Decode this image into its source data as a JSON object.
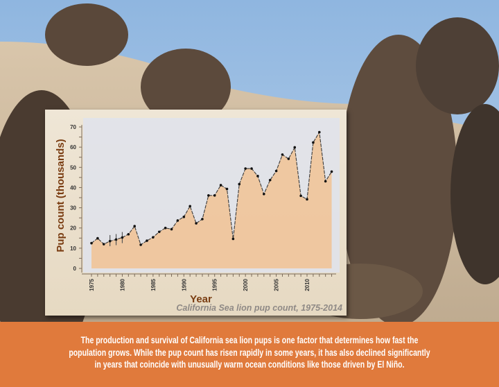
{
  "colors": {
    "banner": "#e07a3c",
    "area_fill": "#f2c08f",
    "axis_text": "#7a3d12",
    "caption": "#8f8a86"
  },
  "chart_data": {
    "type": "area",
    "caption": "California Sea lion pup count, 1975-2014",
    "xlabel": "Year",
    "ylabel": "Pup count (thousands)",
    "xlim": [
      1975,
      2014
    ],
    "ylim": [
      0,
      70
    ],
    "xticks": [
      "1975",
      "1980",
      "1985",
      "1990",
      "1995",
      "2000",
      "2005",
      "2010"
    ],
    "yticks": [
      "0",
      "10",
      "20",
      "30",
      "40",
      "50",
      "60",
      "70"
    ],
    "grid": false,
    "x": [
      1975,
      1976,
      1977,
      1978,
      1979,
      1980,
      1981,
      1982,
      1983,
      1984,
      1985,
      1986,
      1987,
      1988,
      1989,
      1990,
      1991,
      1992,
      1993,
      1994,
      1995,
      1996,
      1997,
      1998,
      1999,
      2000,
      2001,
      2002,
      2003,
      2004,
      2005,
      2006,
      2007,
      2008,
      2009,
      2010,
      2011,
      2012,
      2013,
      2014
    ],
    "values": [
      12.5,
      14.9,
      12.0,
      13.5,
      14.3,
      15.3,
      16.9,
      20.9,
      11.7,
      13.7,
      15.4,
      18.1,
      20.0,
      19.4,
      23.7,
      25.5,
      30.8,
      22.3,
      24.4,
      36.1,
      36.1,
      41.2,
      39.3,
      14.6,
      41.7,
      49.4,
      49.4,
      45.7,
      36.8,
      43.7,
      48.2,
      56.3,
      54.2,
      59.9,
      35.9,
      34.2,
      62.3,
      67.4,
      43.1,
      47.9
    ],
    "error_bars": [
      {
        "x": 1978,
        "low": 11,
        "high": 16.5
      },
      {
        "x": 1979,
        "low": 11.5,
        "high": 17
      },
      {
        "x": 1980,
        "low": 12.5,
        "high": 18
      }
    ]
  },
  "banner": {
    "lines": [
      "The production and survival of California sea lion pups is one factor that determines how fast the",
      "population grows. While the pup count has risen rapidly in some years, it has also declined significantly",
      "in years that coincide with unusually warm ocean conditions like those driven by El Niño."
    ]
  }
}
